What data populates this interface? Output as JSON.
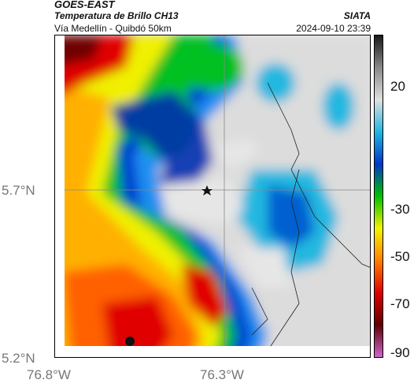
{
  "header": {
    "satellite": "GOES-EAST",
    "product": "Temperatura de Brillo CH13",
    "region": "Vía Medellín - Quibdó 50km",
    "org": "SIATA",
    "datetime": "2024-09-10 23:39"
  },
  "axes": {
    "lat_ticks": [
      "5.7°N",
      "5.2°N"
    ],
    "lon_ticks": [
      "76.8°W",
      "76.3°W"
    ]
  },
  "colorbar": {
    "ticks": [
      "20",
      "-30",
      "-50",
      "-70",
      "-90"
    ],
    "colors": [
      "#1a1a1a",
      "#888888",
      "#e0e0e0",
      "#21b7e0",
      "#0037c8",
      "#00c000",
      "#f4f400",
      "#ff8000",
      "#e00000",
      "#600000",
      "#cc66cc"
    ]
  },
  "marker": {
    "icon": "star-icon"
  }
}
